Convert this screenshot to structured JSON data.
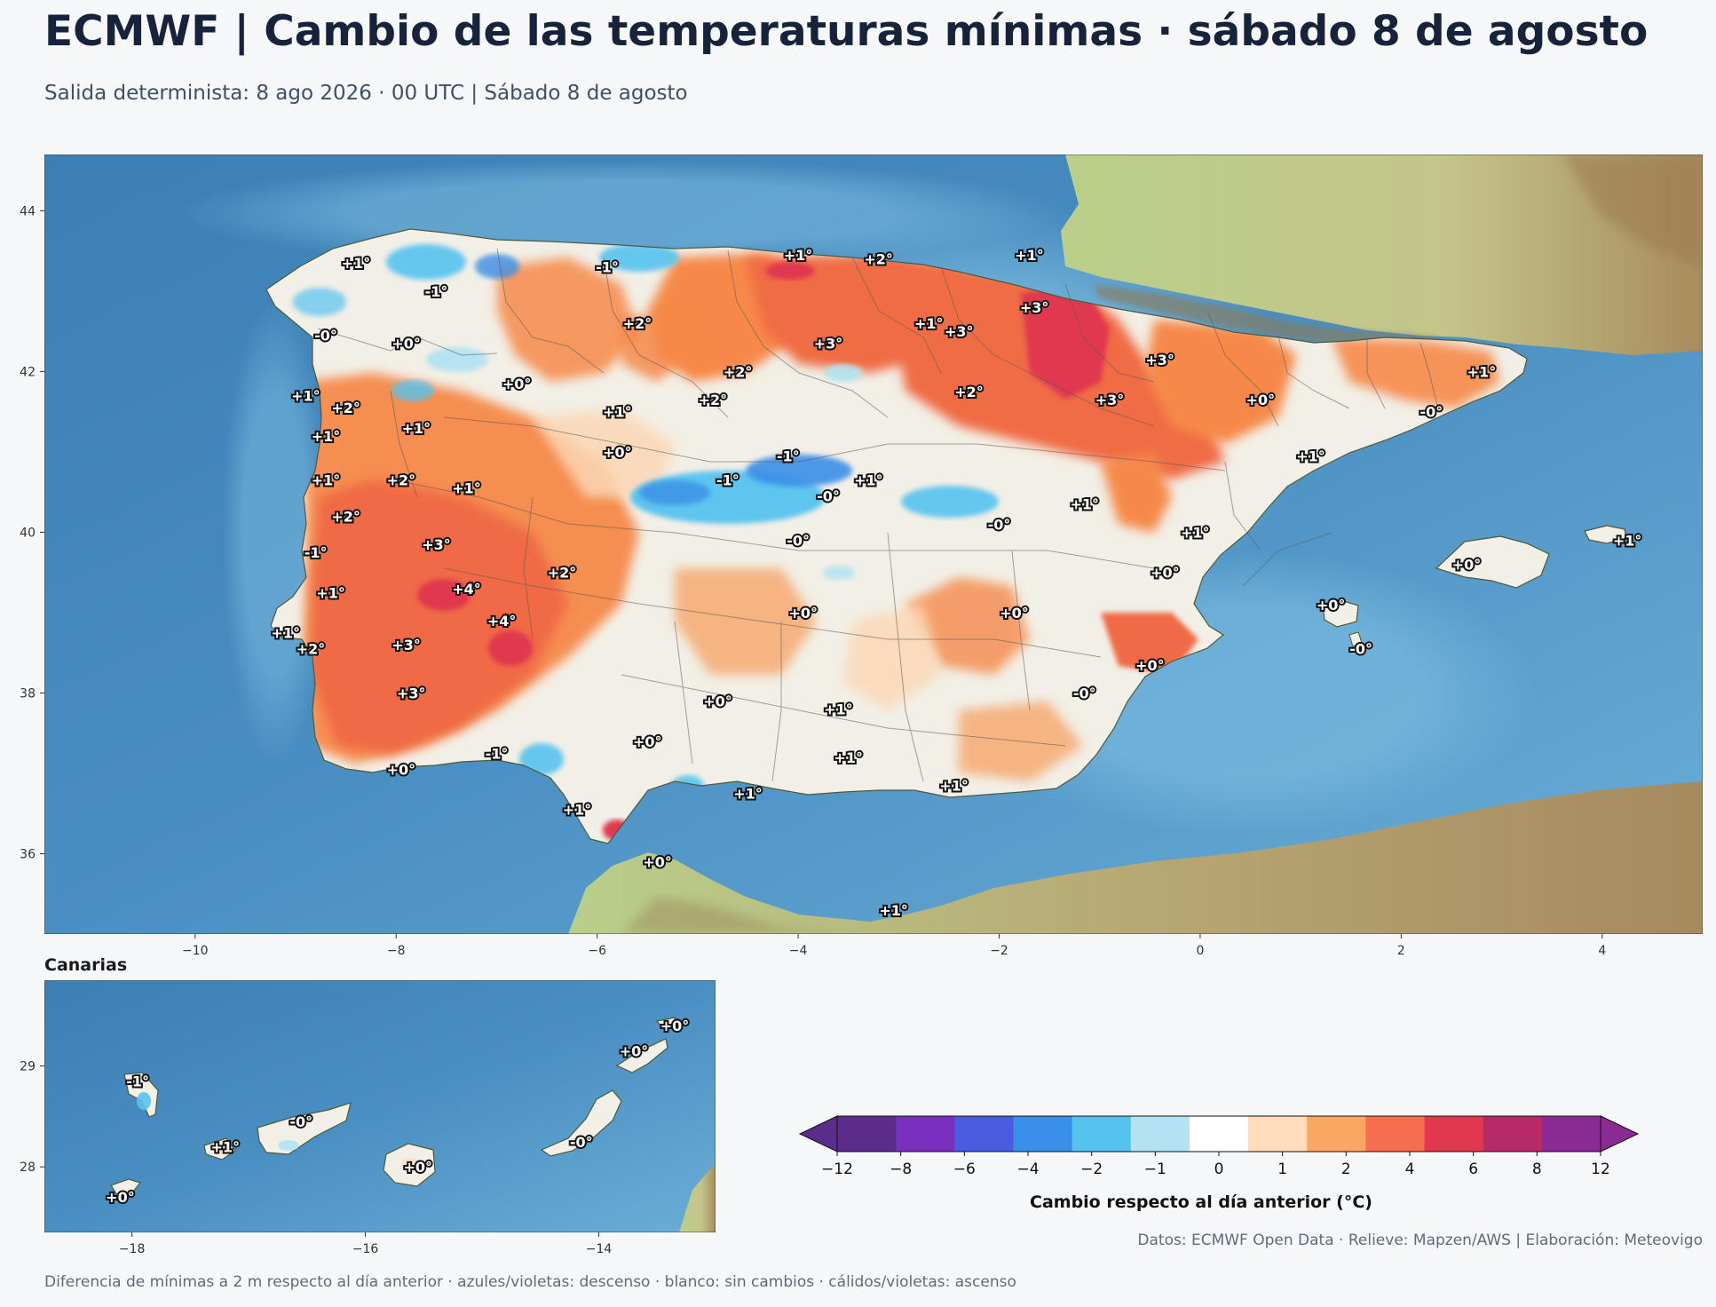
{
  "header": {
    "title": "ECMWF | Cambio de las temperaturas mínimas · sábado 8 de agosto",
    "subtitle": "Salida determinista: 8 ago 2026 · 00 UTC  |  Sábado 8 de agosto"
  },
  "main_map": {
    "lon_range": [
      -11.5,
      5.0
    ],
    "lat_range": [
      35.0,
      44.7
    ],
    "x_ticks": [
      -10,
      -8,
      -6,
      -4,
      -2,
      0,
      2,
      4
    ],
    "x_tick_labels": [
      "−10",
      "−8",
      "−6",
      "−4",
      "−2",
      "0",
      "2",
      "4"
    ],
    "y_ticks": [
      36,
      38,
      40,
      42,
      44
    ],
    "y_tick_labels": [
      "36",
      "38",
      "40",
      "42",
      "44"
    ],
    "labels": [
      {
        "lon": -8.4,
        "lat": 43.35,
        "text": "+1°"
      },
      {
        "lon": -5.9,
        "lat": 43.3,
        "text": "-1°"
      },
      {
        "lon": -7.6,
        "lat": 43.0,
        "text": "-1°"
      },
      {
        "lon": -4.0,
        "lat": 43.45,
        "text": "+1°"
      },
      {
        "lon": -3.2,
        "lat": 43.4,
        "text": "+2°"
      },
      {
        "lon": -1.7,
        "lat": 43.45,
        "text": "+1°"
      },
      {
        "lon": -8.7,
        "lat": 42.45,
        "text": "-0°"
      },
      {
        "lon": -7.9,
        "lat": 42.35,
        "text": "+0°"
      },
      {
        "lon": -5.6,
        "lat": 42.6,
        "text": "+2°"
      },
      {
        "lon": -1.65,
        "lat": 42.8,
        "text": "+3°"
      },
      {
        "lon": -2.7,
        "lat": 42.6,
        "text": "+1°"
      },
      {
        "lon": -2.4,
        "lat": 42.5,
        "text": "+3°"
      },
      {
        "lon": -3.7,
        "lat": 42.35,
        "text": "+3°"
      },
      {
        "lon": -4.6,
        "lat": 42.0,
        "text": "+2°"
      },
      {
        "lon": -0.4,
        "lat": 42.15,
        "text": "+3°"
      },
      {
        "lon": 2.8,
        "lat": 42.0,
        "text": "+1°"
      },
      {
        "lon": -8.9,
        "lat": 41.7,
        "text": "+1°"
      },
      {
        "lon": -8.5,
        "lat": 41.55,
        "text": "+2°"
      },
      {
        "lon": -6.8,
        "lat": 41.85,
        "text": "+0°"
      },
      {
        "lon": -4.85,
        "lat": 41.65,
        "text": "+2°"
      },
      {
        "lon": -5.8,
        "lat": 41.5,
        "text": "+1°"
      },
      {
        "lon": -2.3,
        "lat": 41.75,
        "text": "+2°"
      },
      {
        "lon": -0.9,
        "lat": 41.65,
        "text": "+3°"
      },
      {
        "lon": 0.6,
        "lat": 41.65,
        "text": "+0°"
      },
      {
        "lon": 2.3,
        "lat": 41.5,
        "text": "-0°"
      },
      {
        "lon": -8.7,
        "lat": 41.2,
        "text": "+1°"
      },
      {
        "lon": -7.8,
        "lat": 41.3,
        "text": "+1°"
      },
      {
        "lon": -5.8,
        "lat": 41.0,
        "text": "+0°"
      },
      {
        "lon": -4.1,
        "lat": 40.95,
        "text": "-1°"
      },
      {
        "lon": 1.1,
        "lat": 40.95,
        "text": "+1°"
      },
      {
        "lon": -8.7,
        "lat": 40.65,
        "text": "+1°"
      },
      {
        "lon": -7.95,
        "lat": 40.65,
        "text": "+2°"
      },
      {
        "lon": -7.3,
        "lat": 40.55,
        "text": "+1°"
      },
      {
        "lon": -4.7,
        "lat": 40.65,
        "text": "-1°"
      },
      {
        "lon": -3.3,
        "lat": 40.65,
        "text": "+1°"
      },
      {
        "lon": -3.7,
        "lat": 40.45,
        "text": "-0°"
      },
      {
        "lon": -8.5,
        "lat": 40.2,
        "text": "+2°"
      },
      {
        "lon": -1.15,
        "lat": 40.35,
        "text": "+1°"
      },
      {
        "lon": -2.0,
        "lat": 40.1,
        "text": "-0°"
      },
      {
        "lon": -7.6,
        "lat": 39.85,
        "text": "+3°"
      },
      {
        "lon": -8.8,
        "lat": 39.75,
        "text": "-1°"
      },
      {
        "lon": -4.0,
        "lat": 39.9,
        "text": "-0°"
      },
      {
        "lon": -0.05,
        "lat": 40.0,
        "text": "+1°"
      },
      {
        "lon": -6.35,
        "lat": 39.5,
        "text": "+2°"
      },
      {
        "lon": -0.35,
        "lat": 39.5,
        "text": "+0°"
      },
      {
        "lon": 2.65,
        "lat": 39.6,
        "text": "+0°"
      },
      {
        "lon": 4.25,
        "lat": 39.9,
        "text": "+1°"
      },
      {
        "lon": -7.3,
        "lat": 39.3,
        "text": "+4°"
      },
      {
        "lon": -8.65,
        "lat": 39.25,
        "text": "+1°"
      },
      {
        "lon": -6.95,
        "lat": 38.9,
        "text": "+4°"
      },
      {
        "lon": -3.95,
        "lat": 39.0,
        "text": "+0°"
      },
      {
        "lon": -1.85,
        "lat": 39.0,
        "text": "+0°"
      },
      {
        "lon": 1.3,
        "lat": 39.1,
        "text": "+0°"
      },
      {
        "lon": -9.1,
        "lat": 38.75,
        "text": "+1°"
      },
      {
        "lon": -8.85,
        "lat": 38.55,
        "text": "+2°"
      },
      {
        "lon": -7.9,
        "lat": 38.6,
        "text": "+3°"
      },
      {
        "lon": 1.6,
        "lat": 38.55,
        "text": "-0°"
      },
      {
        "lon": -0.5,
        "lat": 38.35,
        "text": "+0°"
      },
      {
        "lon": -7.85,
        "lat": 38.0,
        "text": "+3°"
      },
      {
        "lon": -1.15,
        "lat": 38.0,
        "text": "-0°"
      },
      {
        "lon": -4.8,
        "lat": 37.9,
        "text": "+0°"
      },
      {
        "lon": -3.6,
        "lat": 37.8,
        "text": "+1°"
      },
      {
        "lon": -5.5,
        "lat": 37.4,
        "text": "+0°"
      },
      {
        "lon": -7.0,
        "lat": 37.25,
        "text": "-1°"
      },
      {
        "lon": -3.5,
        "lat": 37.2,
        "text": "+1°"
      },
      {
        "lon": -7.95,
        "lat": 37.05,
        "text": "+0°"
      },
      {
        "lon": -2.45,
        "lat": 36.85,
        "text": "+1°"
      },
      {
        "lon": -4.5,
        "lat": 36.75,
        "text": "+1°"
      },
      {
        "lon": -6.2,
        "lat": 36.55,
        "text": "+1°"
      },
      {
        "lon": -5.4,
        "lat": 35.9,
        "text": "+0°"
      },
      {
        "lon": -3.05,
        "lat": 35.3,
        "text": "+1°"
      }
    ]
  },
  "canarias": {
    "title": "Canarias",
    "lon_range": [
      -18.75,
      -13.0
    ],
    "lat_range": [
      27.35,
      29.85
    ],
    "x_ticks": [
      -18,
      -16,
      -14
    ],
    "x_tick_labels": [
      "−18",
      "−16",
      "−14"
    ],
    "y_ticks": [
      28,
      29
    ],
    "y_tick_labels": [
      "28",
      "29"
    ],
    "labels": [
      {
        "lon": -17.95,
        "lat": 28.85,
        "text": "-1°"
      },
      {
        "lon": -17.2,
        "lat": 28.2,
        "text": "+1°"
      },
      {
        "lon": -16.55,
        "lat": 28.45,
        "text": "-0°"
      },
      {
        "lon": -15.55,
        "lat": 28.0,
        "text": "+0°"
      },
      {
        "lon": -14.15,
        "lat": 28.25,
        "text": "-0°"
      },
      {
        "lon": -13.7,
        "lat": 29.15,
        "text": "+0°"
      },
      {
        "lon": -13.35,
        "lat": 29.4,
        "text": "+0°"
      },
      {
        "lon": -18.1,
        "lat": 27.7,
        "text": "+0°"
      }
    ]
  },
  "colorbar": {
    "label": "Cambio respecto al día anterior (°C)",
    "bounds": [
      -12,
      -8,
      -6,
      -4,
      -2,
      -1,
      0,
      1,
      2,
      4,
      6,
      8,
      12
    ],
    "tick_labels": [
      "−12",
      "−8",
      "−6",
      "−4",
      "−2",
      "−1",
      "0",
      "1",
      "2",
      "4",
      "6",
      "8",
      "12"
    ],
    "colors": [
      "#5b2c8a",
      "#7b2fbe",
      "#4b5be0",
      "#3a8fe8",
      "#56c3ef",
      "#b3e3f2",
      "#ffffff",
      "#ffdcbc",
      "#fba764",
      "#f56e4e",
      "#e0394f",
      "#b62a68",
      "#8a2b93"
    ],
    "under_color": "#5b2c8a",
    "over_color": "#8a2b93"
  },
  "footer": {
    "credits": "Datos: ECMWF Open Data · Relieve: Mapzen/AWS  |  Elaboración: Meteovigo",
    "note": "Diferencia de mínimas a 2 m respecto al día anterior · azules/violetas: descenso · blanco: sin cambios · cálidos/violetas: ascenso"
  }
}
